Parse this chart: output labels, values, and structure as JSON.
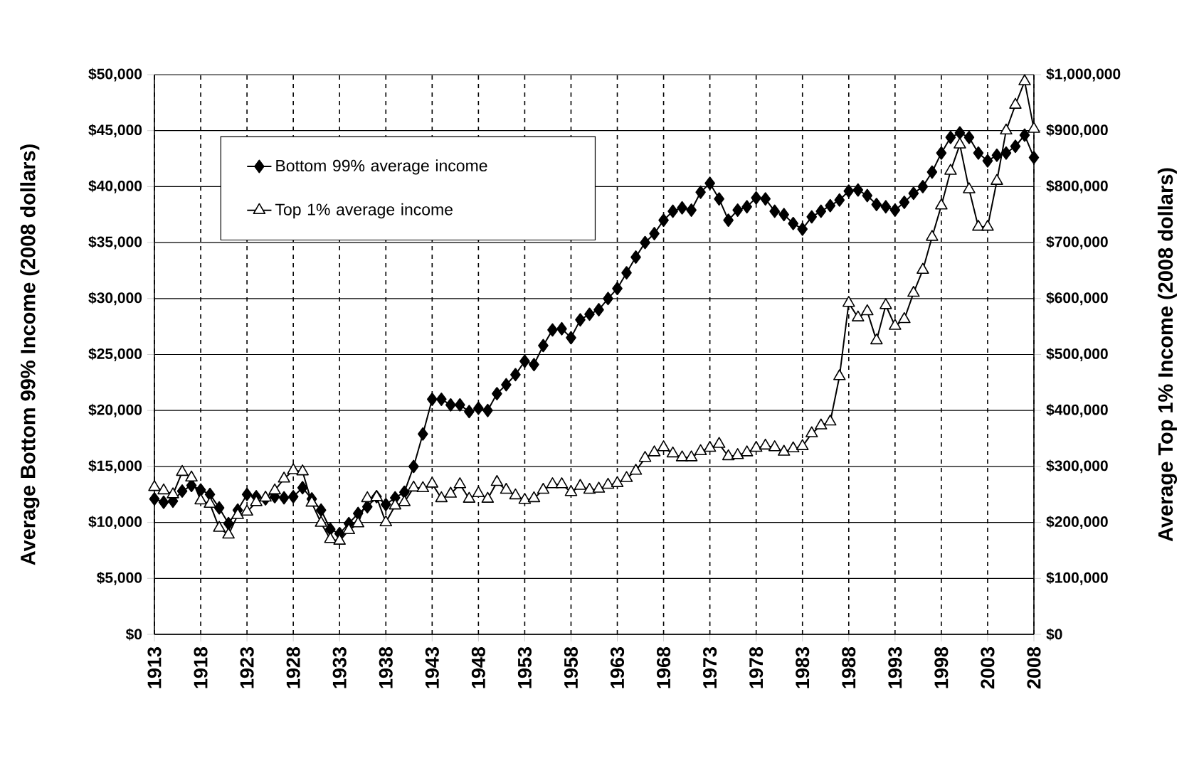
{
  "chart_data": {
    "type": "line",
    "ylabel": "Average Bottom 99% Income (2008 dollars)",
    "y2label": "Average Top 1% Income (2008 dollars)",
    "x": [
      1913,
      1914,
      1915,
      1916,
      1917,
      1918,
      1919,
      1920,
      1921,
      1922,
      1923,
      1924,
      1925,
      1926,
      1927,
      1928,
      1929,
      1930,
      1931,
      1932,
      1933,
      1934,
      1935,
      1936,
      1937,
      1938,
      1939,
      1940,
      1941,
      1942,
      1943,
      1944,
      1945,
      1946,
      1947,
      1948,
      1949,
      1950,
      1951,
      1952,
      1953,
      1954,
      1955,
      1956,
      1957,
      1958,
      1959,
      1960,
      1961,
      1962,
      1963,
      1964,
      1965,
      1966,
      1967,
      1968,
      1969,
      1970,
      1971,
      1972,
      1973,
      1974,
      1975,
      1976,
      1977,
      1978,
      1979,
      1980,
      1981,
      1982,
      1983,
      1984,
      1985,
      1986,
      1987,
      1988,
      1989,
      1990,
      1991,
      1992,
      1993,
      1994,
      1995,
      1996,
      1997,
      1998,
      1999,
      2000,
      2001,
      2002,
      2003,
      2004,
      2005,
      2006,
      2007,
      2008
    ],
    "series": [
      {
        "name": "Bottom 99% average income",
        "color": "#000000",
        "marker": "diamond",
        "values": [
          12100,
          11800,
          11900,
          12800,
          13300,
          12900,
          12500,
          11300,
          9900,
          11100,
          12500,
          12300,
          12100,
          12300,
          12200,
          12300,
          13100,
          12100,
          11100,
          9400,
          9000,
          9900,
          10800,
          11400,
          12300,
          11600,
          12200,
          12700,
          15000,
          17900,
          21000,
          21000,
          20500,
          20500,
          19900,
          20200,
          20000,
          21500,
          22300,
          23200,
          24400,
          24100,
          25800,
          27200,
          27300,
          26500,
          28100,
          28600,
          29000,
          30000,
          30900,
          32300,
          33700,
          35000,
          35800,
          37000,
          37800,
          38100,
          37900,
          39500,
          40300,
          38900,
          37000,
          37900,
          38200,
          39000,
          38900,
          37800,
          37500,
          36700,
          36200,
          37300,
          37800,
          38300,
          38800,
          39600,
          39700,
          39200,
          38400,
          38200,
          37900,
          38600,
          39400,
          40000,
          41300,
          43000,
          44400,
          44800,
          44400,
          43000,
          42300,
          42800,
          43000,
          43600,
          44600,
          42600
        ]
      },
      {
        "name": "Top 1% average income",
        "color": "#000000",
        "marker": "triangle",
        "axis": "y2",
        "values": [
          263000,
          257000,
          250000,
          290000,
          280000,
          239000,
          233000,
          190000,
          178000,
          213000,
          219000,
          236000,
          244000,
          257000,
          278000,
          293000,
          291000,
          235000,
          199000,
          170000,
          167000,
          186000,
          198000,
          243000,
          245000,
          200000,
          230000,
          236000,
          262000,
          261000,
          269000,
          243000,
          251000,
          268000,
          242000,
          252000,
          242000,
          272000,
          258000,
          248000,
          240000,
          243000,
          258000,
          268000,
          268000,
          254000,
          265000,
          258000,
          260000,
          267000,
          270000,
          279000,
          292000,
          315000,
          325000,
          334000,
          323000,
          316000,
          316000,
          327000,
          333000,
          340000,
          318000,
          320000,
          325000,
          333000,
          337000,
          334000,
          326000,
          332000,
          336000,
          359000,
          373000,
          380000,
          461000,
          592000,
          566000,
          577000,
          525000,
          588000,
          551000,
          563000,
          610000,
          651000,
          710000,
          766000,
          828000,
          875000,
          795000,
          728000,
          728000,
          810000,
          900000,
          946000,
          988000,
          903000
        ]
      }
    ],
    "xlim": [
      1913,
      2008
    ],
    "xticks": [
      1913,
      1918,
      1923,
      1928,
      1933,
      1938,
      1943,
      1948,
      1953,
      1958,
      1963,
      1968,
      1973,
      1978,
      1983,
      1988,
      1993,
      1998,
      2003,
      2008
    ],
    "ylim": [
      0,
      50000
    ],
    "yticks": [
      {
        "value": 0,
        "label": "$0"
      },
      {
        "value": 5000,
        "label": "$5,000"
      },
      {
        "value": 10000,
        "label": "$10,000"
      },
      {
        "value": 15000,
        "label": "$15,000"
      },
      {
        "value": 20000,
        "label": "$20,000"
      },
      {
        "value": 25000,
        "label": "$25,000"
      },
      {
        "value": 30000,
        "label": "$30,000"
      },
      {
        "value": 35000,
        "label": "$35,000"
      },
      {
        "value": 40000,
        "label": "$40,000"
      },
      {
        "value": 45000,
        "label": "$45,000"
      },
      {
        "value": 50000,
        "label": "$50,000"
      }
    ],
    "y2lim": [
      0,
      1000000
    ],
    "y2ticks": [
      {
        "value": 0,
        "label": "$0"
      },
      {
        "value": 100000,
        "label": "$100,000"
      },
      {
        "value": 200000,
        "label": "$200,000"
      },
      {
        "value": 300000,
        "label": "$300,000"
      },
      {
        "value": 400000,
        "label": "$400,000"
      },
      {
        "value": 500000,
        "label": "$500,000"
      },
      {
        "value": 600000,
        "label": "$600,000"
      },
      {
        "value": 700000,
        "label": "$700,000"
      },
      {
        "value": 800000,
        "label": "$800,000"
      },
      {
        "value": 900000,
        "label": "$900,000"
      },
      {
        "value": 1000000,
        "label": "$1,000,000"
      }
    ],
    "grid": true,
    "legend": "top left",
    "line_style": "solid"
  }
}
